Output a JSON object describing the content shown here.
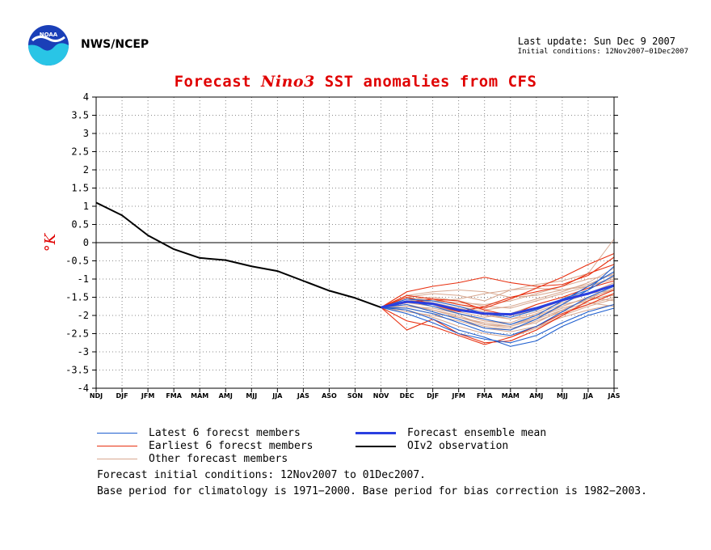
{
  "header": {
    "agency": "NWS/NCEP",
    "last_update": "Last update: Sun Dec  9 2007",
    "initial_conditions": "Initial conditions: 12Nov2007−01Dec2007"
  },
  "title": {
    "part1": "Forecast ",
    "part2": "Nino3",
    "part3": "  SST anomalies from CFS"
  },
  "legend": {
    "latest": "Latest 6 forecst members",
    "earliest": "Earliest 6 forecst members",
    "other": "Other forecast members",
    "mean": "Forecast ensemble mean",
    "obs": "OIv2 observation"
  },
  "footnotes": {
    "line1": "Forecast initial conditions: 12Nov2007 to 01Dec2007.",
    "line2": "Base period for climatology is 1971−2000. Base period for bias correction is 1982−2003."
  },
  "colors": {
    "latest": "#1f5fcf",
    "earliest": "#e83010",
    "other": "#d8a890",
    "mean": "#2a3fe0",
    "obs": "#000000",
    "title": "#e00000"
  },
  "chart_data": {
    "type": "line",
    "ylabel": "°K",
    "ylim": [
      -4,
      4
    ],
    "yticks": [
      "4",
      "3.5",
      "3",
      "2.5",
      "2",
      "1.5",
      "1",
      "0.5",
      "0",
      "-0.5",
      "-1",
      "-1.5",
      "-2",
      "-2.5",
      "-3",
      "-3.5",
      "-4"
    ],
    "categories": [
      "NDJ",
      "DJF",
      "JFM",
      "FMA",
      "MAM",
      "AMJ",
      "MJJ",
      "JJA",
      "JAS",
      "ASO",
      "SON",
      "NOV",
      "DEC",
      "DJF",
      "JFM",
      "FMA",
      "MAM",
      "AMJ",
      "MJJ",
      "JJA",
      "JAS"
    ],
    "grid": true,
    "observation": {
      "name": "OIv2 observation",
      "x_index": [
        0,
        1,
        2,
        3,
        4,
        5,
        6,
        7,
        8,
        9,
        10,
        11
      ],
      "values": [
        1.1,
        0.75,
        0.2,
        -0.18,
        -0.42,
        -0.48,
        -0.65,
        -0.78,
        -1.05,
        -1.32,
        -1.52,
        -1.78
      ]
    },
    "ensemble_mean": {
      "name": "Forecast ensemble mean",
      "x_index": [
        11,
        12,
        13,
        14,
        15,
        16,
        17,
        18,
        19,
        20
      ],
      "values": [
        -1.78,
        -1.62,
        -1.68,
        -1.85,
        -1.95,
        -1.97,
        -1.8,
        -1.58,
        -1.4,
        -1.17
      ]
    },
    "latest_members": [
      [
        -1.78,
        -1.95,
        -2.2,
        -2.5,
        -2.65,
        -2.75,
        -2.55,
        -2.2,
        -1.9,
        -1.7
      ],
      [
        -1.78,
        -1.85,
        -2.1,
        -2.4,
        -2.6,
        -2.85,
        -2.7,
        -2.3,
        -2.0,
        -1.8
      ],
      [
        -1.78,
        -1.7,
        -1.9,
        -2.1,
        -2.35,
        -2.4,
        -2.1,
        -1.7,
        -1.3,
        -0.9
      ],
      [
        -1.78,
        -1.6,
        -1.75,
        -1.95,
        -2.1,
        -2.25,
        -2.0,
        -1.6,
        -1.2,
        -0.8
      ],
      [
        -1.78,
        -1.8,
        -1.95,
        -2.2,
        -2.45,
        -2.55,
        -2.3,
        -1.9,
        -1.5,
        -1.2
      ],
      [
        -1.78,
        -1.55,
        -1.6,
        -1.75,
        -1.95,
        -2.05,
        -1.85,
        -1.55,
        -1.3,
        -0.65
      ]
    ],
    "earliest_members": [
      [
        -1.78,
        -2.4,
        -2.1,
        -2.5,
        -2.75,
        -2.7,
        -2.4,
        -2.0,
        -1.6,
        -1.3
      ],
      [
        -1.78,
        -1.35,
        -1.2,
        -1.1,
        -0.95,
        -1.1,
        -1.2,
        -1.15,
        -0.9,
        -0.4
      ],
      [
        -1.78,
        -1.45,
        -1.55,
        -1.7,
        -1.8,
        -1.55,
        -1.25,
        -0.95,
        -0.6,
        -0.3
      ],
      [
        -1.78,
        -2.15,
        -2.3,
        -2.55,
        -2.8,
        -2.6,
        -2.3,
        -1.95,
        -1.7,
        -1.4
      ],
      [
        -1.78,
        -1.65,
        -1.55,
        -1.6,
        -1.85,
        -2.0,
        -1.7,
        -1.5,
        -1.25,
        -1.05
      ],
      [
        -1.78,
        -1.5,
        -1.7,
        -1.9,
        -1.75,
        -1.5,
        -1.35,
        -1.2,
        -0.85,
        -0.6
      ]
    ],
    "other_members": [
      [
        -1.78,
        -1.5,
        -1.4,
        -1.45,
        -1.6,
        -1.3,
        -1.15,
        -1.05,
        -0.85,
        0.1
      ],
      [
        -1.78,
        -1.65,
        -1.7,
        -1.8,
        -2.0,
        -2.1,
        -1.9,
        -1.65,
        -1.4,
        -1.1
      ],
      [
        -1.78,
        -1.7,
        -1.85,
        -2.0,
        -2.25,
        -2.35,
        -2.2,
        -1.85,
        -1.55,
        -1.25
      ],
      [
        -1.78,
        -1.55,
        -1.5,
        -1.6,
        -1.75,
        -1.8,
        -1.6,
        -1.4,
        -1.2,
        -1.0
      ],
      [
        -1.78,
        -1.85,
        -2.05,
        -2.3,
        -2.5,
        -2.6,
        -2.35,
        -2.0,
        -1.75,
        -1.55
      ],
      [
        -1.78,
        -1.6,
        -1.6,
        -1.55,
        -1.4,
        -1.3,
        -1.25,
        -1.3,
        -1.2,
        -0.95
      ],
      [
        -1.78,
        -1.75,
        -1.8,
        -1.95,
        -2.15,
        -2.25,
        -2.05,
        -1.8,
        -1.6,
        -1.4
      ],
      [
        -1.78,
        -1.45,
        -1.35,
        -1.3,
        -1.35,
        -1.5,
        -1.45,
        -1.3,
        -1.15,
        -0.85
      ],
      [
        -1.78,
        -1.9,
        -2.0,
        -2.15,
        -2.35,
        -2.45,
        -2.3,
        -2.05,
        -1.85,
        -1.7
      ],
      [
        -1.78,
        -1.65,
        -1.75,
        -1.9,
        -2.05,
        -1.95,
        -1.7,
        -1.5,
        -1.4,
        -1.3
      ],
      [
        -1.78,
        -1.55,
        -1.65,
        -1.8,
        -1.95,
        -2.1,
        -2.0,
        -1.75,
        -1.5,
        -1.6
      ],
      [
        -1.78,
        -1.7,
        -1.9,
        -2.1,
        -2.3,
        -2.4,
        -2.15,
        -1.9,
        -1.7,
        -1.5
      ],
      [
        -1.78,
        -1.6,
        -1.55,
        -1.7,
        -1.85,
        -1.75,
        -1.55,
        -1.35,
        -1.1,
        -0.7
      ],
      [
        -1.78,
        -1.8,
        -1.95,
        -2.05,
        -2.2,
        -2.3,
        -2.1,
        -1.85,
        -1.65,
        -1.75
      ],
      [
        -1.78,
        -1.5,
        -1.6,
        -1.75,
        -1.9,
        -2.0,
        -1.85,
        -1.6,
        -1.4,
        -1.2
      ],
      [
        -1.78,
        -1.65,
        -1.6,
        -1.65,
        -1.7,
        -1.6,
        -1.4,
        -1.2,
        -1.0,
        -0.9
      ],
      [
        -1.78,
        -1.75,
        -1.85,
        -2.05,
        -2.25,
        -2.3,
        -2.05,
        -1.75,
        -1.5,
        -1.3
      ],
      [
        -1.78,
        -1.55,
        -1.7,
        -1.95,
        -2.15,
        -2.2,
        -1.95,
        -1.7,
        -1.55,
        -1.45
      ]
    ]
  }
}
